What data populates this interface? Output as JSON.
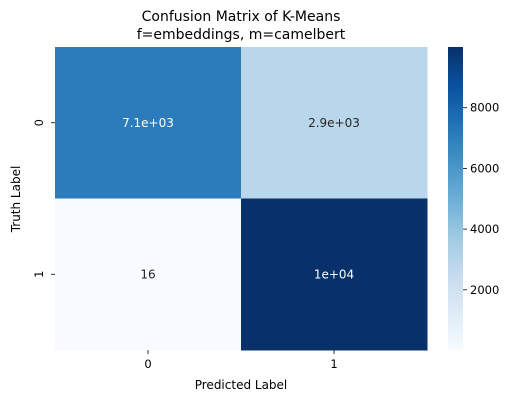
{
  "chart_data": {
    "type": "heatmap",
    "title_line1": "Confusion Matrix of K-Means",
    "title_line2": "f=embeddings, m=camelbert",
    "xlabel": "Predicted Label",
    "ylabel": "Truth Label",
    "x_categories": [
      "0",
      "1"
    ],
    "y_categories": [
      "0",
      "1"
    ],
    "values": [
      [
        7100,
        2900
      ],
      [
        16,
        10000
      ]
    ],
    "annotations": [
      [
        "7.1e+03",
        "2.9e+03"
      ],
      [
        "16",
        "1e+04"
      ]
    ],
    "colormap": "Blues",
    "colorbar": {
      "min": 16,
      "max": 10000,
      "ticks": [
        2000,
        4000,
        6000,
        8000
      ],
      "tick_labels": [
        "2000",
        "4000",
        "6000",
        "8000"
      ]
    }
  }
}
